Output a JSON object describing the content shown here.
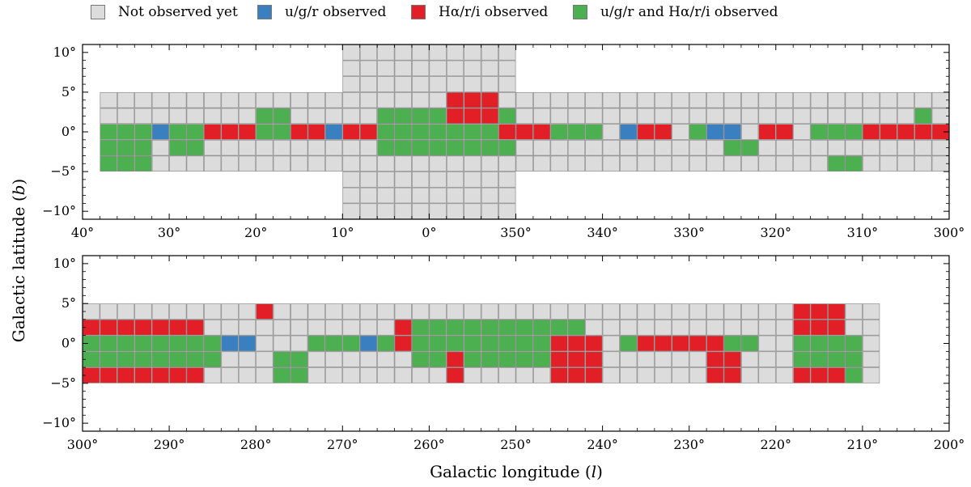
{
  "legend": {
    "items": [
      {
        "label": "Not observed yet",
        "color": "#dcdcdc"
      },
      {
        "label": "u/g/r observed",
        "color": "#3a7fc0"
      },
      {
        "label": "Hα/r/i observed",
        "color": "#e21f26"
      },
      {
        "label": "u/g/r and Hα/r/i observed",
        "color": "#4caf50"
      }
    ]
  },
  "axes": {
    "xlabel_prefix": "Galactic longitude (",
    "xlabel_var": "l",
    "xlabel_suffix": ")",
    "ylabel_prefix": "Galactic latitude (",
    "ylabel_var": "b",
    "ylabel_suffix": ")"
  },
  "chart_data": [
    {
      "type": "heatmap",
      "panel": "top",
      "xlim": [
        40,
        -60
      ],
      "ylim": [
        -11,
        11
      ],
      "x_ticks": [
        40,
        30,
        20,
        10,
        0,
        -10,
        -20,
        -30,
        -40,
        -50,
        -60
      ],
      "x_tick_labels": [
        "40°",
        "30°",
        "20°",
        "10°",
        "0°",
        "350°",
        "340°",
        "330°",
        "320°",
        "310°",
        "300°"
      ],
      "y_ticks": [
        10,
        5,
        0,
        -5,
        -10
      ],
      "y_tick_labels": [
        "10°",
        "5°",
        "0°",
        "−5°",
        "−10°"
      ],
      "footprint": [
        {
          "l": [
            38,
            33
          ],
          "b": [
            -5,
            5
          ]
        },
        {
          "l": [
            33,
            10
          ],
          "b": [
            -5,
            5
          ]
        },
        {
          "l": [
            10,
            -10
          ],
          "b": [
            -10,
            10
          ]
        },
        {
          "l": [
            -10,
            -60
          ],
          "b": [
            -5,
            5
          ]
        }
      ],
      "regions": [
        {
          "status": "ugr_halpha",
          "l": [
            37.5,
            33
          ],
          "b": [
            -4.5,
            0
          ]
        },
        {
          "status": "ugr",
          "l": [
            32,
            29
          ],
          "b": [
            -1,
            1
          ]
        },
        {
          "status": "ugr_halpha",
          "l": [
            29,
            26
          ],
          "b": [
            -2,
            1
          ]
        },
        {
          "status": "halpha",
          "l": [
            26,
            21
          ],
          "b": [
            -1.5,
            1
          ]
        },
        {
          "status": "ugr_halpha",
          "l": [
            20,
            16
          ],
          "b": [
            -1.5,
            3
          ]
        },
        {
          "status": "halpha",
          "l": [
            15,
            12
          ],
          "b": [
            -1,
            0.5
          ]
        },
        {
          "status": "ugr",
          "l": [
            12,
            10
          ],
          "b": [
            -0.5,
            1
          ]
        },
        {
          "status": "halpha",
          "l": [
            10,
            6
          ],
          "b": [
            -1.5,
            1.5
          ]
        },
        {
          "status": "ugr_halpha",
          "l": [
            6,
            -9
          ],
          "b": [
            -2.5,
            3
          ]
        },
        {
          "status": "halpha",
          "l": [
            -2,
            -7
          ],
          "b": [
            1,
            4
          ]
        },
        {
          "status": "halpha",
          "l": [
            -9,
            -14
          ],
          "b": [
            -1,
            1
          ]
        },
        {
          "status": "ugr_halpha",
          "l": [
            -14,
            -19
          ],
          "b": [
            -1,
            1
          ]
        },
        {
          "status": "ugr",
          "l": [
            -22,
            -24
          ],
          "b": [
            -1,
            0.5
          ]
        },
        {
          "status": "halpha",
          "l": [
            -24,
            -27
          ],
          "b": [
            -1.5,
            1
          ]
        },
        {
          "status": "ugr_halpha",
          "l": [
            -30,
            -34
          ],
          "b": [
            -1,
            1
          ]
        },
        {
          "status": "ugr",
          "l": [
            -33,
            -36
          ],
          "b": [
            -1,
            0
          ]
        },
        {
          "status": "ugr_halpha",
          "l": [
            -35,
            -38
          ],
          "b": [
            -3.5,
            -2
          ]
        },
        {
          "status": "halpha",
          "l": [
            -38,
            -42
          ],
          "b": [
            -1,
            1
          ]
        },
        {
          "status": "ugr_halpha",
          "l": [
            -45,
            -50
          ],
          "b": [
            -1,
            1
          ]
        },
        {
          "status": "ugr_halpha",
          "l": [
            -47,
            -49
          ],
          "b": [
            -4.5,
            -3
          ]
        },
        {
          "status": "halpha",
          "l": [
            -50,
            -60
          ],
          "b": [
            -1,
            1
          ]
        },
        {
          "status": "ugr_halpha",
          "l": [
            -56,
            -58
          ],
          "b": [
            1,
            2
          ]
        }
      ]
    },
    {
      "type": "heatmap",
      "panel": "bottom",
      "xlim": [
        300,
        200
      ],
      "ylim": [
        -11,
        11
      ],
      "x_ticks": [
        300,
        290,
        280,
        270,
        260,
        250,
        240,
        230,
        220,
        210,
        200
      ],
      "x_tick_labels": [
        "300°",
        "290°",
        "280°",
        "270°",
        "260°",
        "250°",
        "240°",
        "230°",
        "220°",
        "210°",
        "200°"
      ],
      "y_ticks": [
        10,
        5,
        0,
        -5,
        -10
      ],
      "y_tick_labels": [
        "10°",
        "5°",
        "0°",
        "−5°",
        "−10°"
      ],
      "footprint": [
        {
          "l": [
            300,
            209
          ],
          "b": [
            -5,
            5
          ]
        }
      ],
      "regions": [
        {
          "status": "halpha",
          "l": [
            300,
            286
          ],
          "b": [
            -4,
            3
          ]
        },
        {
          "status": "ugr_halpha",
          "l": [
            299,
            284
          ],
          "b": [
            -2,
            1
          ]
        },
        {
          "status": "ugr",
          "l": [
            284,
            281
          ],
          "b": [
            -1,
            0
          ]
        },
        {
          "status": "halpha",
          "l": [
            280,
            278
          ],
          "b": [
            3,
            5
          ]
        },
        {
          "status": "ugr_halpha",
          "l": [
            278,
            275
          ],
          "b": [
            -5,
            -2
          ]
        },
        {
          "status": "ugr_halpha",
          "l": [
            273,
            265
          ],
          "b": [
            -1,
            1
          ]
        },
        {
          "status": "ugr",
          "l": [
            268,
            266
          ],
          "b": [
            -1,
            0
          ]
        },
        {
          "status": "halpha",
          "l": [
            264,
            259
          ],
          "b": [
            0,
            3
          ]
        },
        {
          "status": "ugr_halpha",
          "l": [
            261,
            247
          ],
          "b": [
            -2,
            2
          ]
        },
        {
          "status": "halpha",
          "l": [
            258,
            256
          ],
          "b": [
            -4,
            -2
          ]
        },
        {
          "status": "ugr_halpha",
          "l": [
            247,
            242
          ],
          "b": [
            -3,
            2
          ]
        },
        {
          "status": "halpha",
          "l": [
            245,
            241
          ],
          "b": [
            -4,
            1
          ]
        },
        {
          "status": "ugr_halpha",
          "l": [
            237,
            227
          ],
          "b": [
            -1,
            1
          ]
        },
        {
          "status": "halpha",
          "l": [
            235,
            229
          ],
          "b": [
            -1,
            1
          ]
        },
        {
          "status": "halpha",
          "l": [
            228,
            224
          ],
          "b": [
            -4,
            1
          ]
        },
        {
          "status": "ugr_halpha",
          "l": [
            226,
            222
          ],
          "b": [
            -1,
            1
          ]
        },
        {
          "status": "halpha",
          "l": [
            217,
            213
          ],
          "b": [
            0,
            5
          ]
        },
        {
          "status": "ugr_halpha",
          "l": [
            218,
            210
          ],
          "b": [
            -4,
            0
          ]
        },
        {
          "status": "halpha",
          "l": [
            217,
            213
          ],
          "b": [
            -5,
            -3
          ]
        }
      ]
    }
  ]
}
